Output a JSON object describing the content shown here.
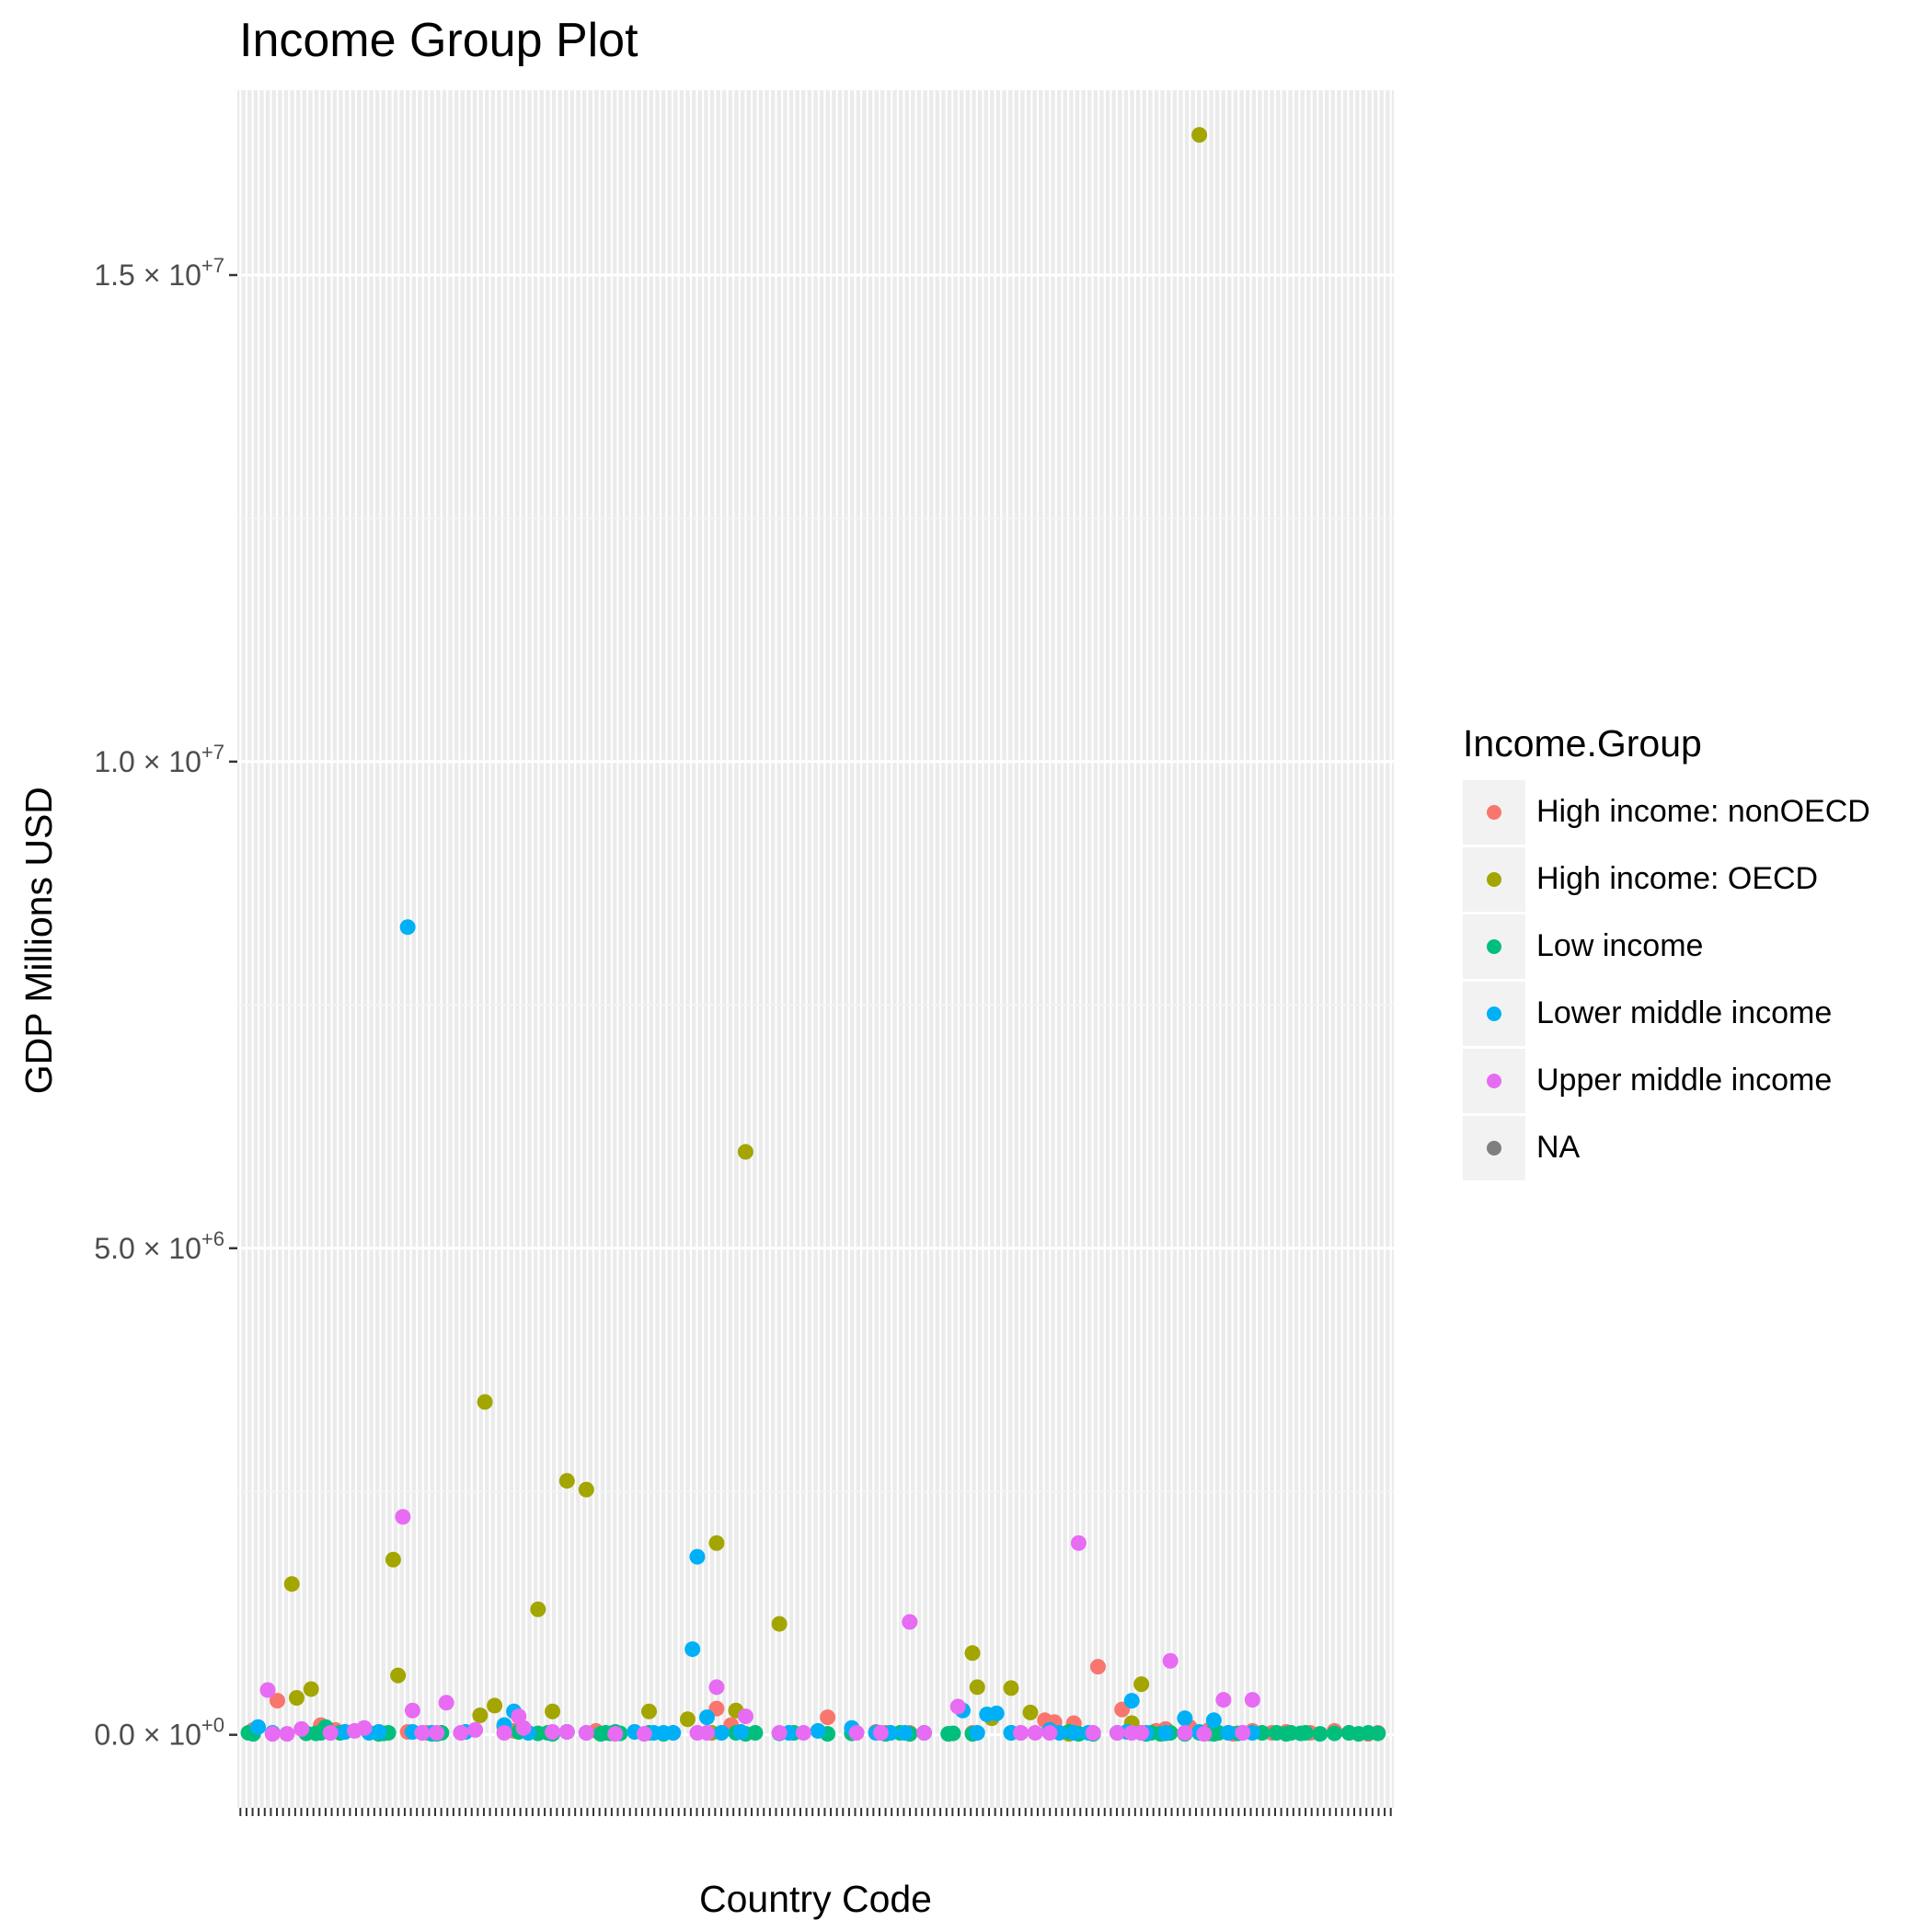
{
  "chart_data": {
    "type": "scatter",
    "title": "Income Group Plot",
    "xlabel": "Country Code",
    "ylabel": "GDP Millions USD",
    "ylim": [
      -750000,
      16900000
    ],
    "y_ticks": [
      {
        "value": 0,
        "mantissa": "0.0",
        "exp": "+0"
      },
      {
        "value": 5000000,
        "mantissa": "5.0",
        "exp": "+6"
      },
      {
        "value": 10000000,
        "mantissa": "1.0",
        "exp": "+7"
      },
      {
        "value": 15000000,
        "mantissa": "1.5",
        "exp": "+7"
      }
    ],
    "grid": true,
    "legend_position": "right",
    "legend_title": "Income.Group",
    "x_tick_count": 190,
    "colors": {
      "panel": "#ebebeb",
      "grid_major": "#ffffff",
      "grid_minor": "#f5f5f5"
    },
    "series": [
      {
        "name": "High income: nonOECD",
        "color": "#F8766D",
        "points": [
          [
            1,
            50000
          ],
          [
            6,
            350000
          ],
          [
            15,
            100000
          ],
          [
            18,
            50000
          ],
          [
            20,
            30000
          ],
          [
            33,
            30000
          ],
          [
            37,
            20000
          ],
          [
            53,
            80000
          ],
          [
            55,
            40000
          ],
          [
            72,
            40000
          ],
          [
            88,
            20000
          ],
          [
            97,
            270000
          ],
          [
            100,
            100000
          ],
          [
            120,
            180000
          ],
          [
            125,
            60000
          ],
          [
            130,
            30000
          ],
          [
            132,
            20000
          ],
          [
            137,
            20000
          ],
          [
            145,
            10000
          ],
          [
            150,
            20000
          ],
          [
            160,
            20000
          ],
          [
            165,
            150000
          ],
          [
            167,
            130000
          ],
          [
            171,
            120000
          ],
          [
            176,
            700000
          ],
          [
            181,
            260000
          ],
          [
            185,
            20000
          ],
          [
            188,
            40000
          ],
          [
            190,
            60000
          ],
          [
            195,
            80000
          ],
          [
            199,
            50000
          ],
          [
            203,
            20000
          ],
          [
            204,
            10000
          ],
          [
            208,
            40000
          ],
          [
            212,
            20000
          ],
          [
            215,
            30000
          ],
          [
            220,
            20000
          ],
          [
            225,
            40000
          ],
          [
            228,
            20000
          ],
          [
            232,
            10000
          ],
          [
            234,
            20000
          ]
        ]
      },
      {
        "name": "High income: OECD",
        "color": "#A3A500",
        "points": [
          [
            9,
            1550000
          ],
          [
            10,
            380000
          ],
          [
            13,
            470000
          ],
          [
            30,
            1800000
          ],
          [
            31,
            610000
          ],
          [
            48,
            200000
          ],
          [
            49,
            3420000
          ],
          [
            51,
            300000
          ],
          [
            60,
            1290000
          ],
          [
            63,
            240000
          ],
          [
            66,
            2610000
          ],
          [
            70,
            2520000
          ],
          [
            83,
            240000
          ],
          [
            91,
            160000
          ],
          [
            96,
            20000
          ],
          [
            97,
            1970000
          ],
          [
            101,
            250000
          ],
          [
            103,
            5990000
          ],
          [
            110,
            1140000
          ],
          [
            150,
            840000
          ],
          [
            151,
            490000
          ],
          [
            154,
            170000
          ],
          [
            158,
            480000
          ],
          [
            162,
            230000
          ],
          [
            170,
            10000
          ],
          [
            183,
            120000
          ],
          [
            185,
            520000
          ],
          [
            197,
            16440000
          ]
        ]
      },
      {
        "name": "Low income",
        "color": "#00BF7D",
        "points": [
          [
            0,
            20000
          ],
          [
            1,
            10000
          ],
          [
            12,
            15000
          ],
          [
            14,
            15000
          ],
          [
            15,
            20000
          ],
          [
            16,
            80000
          ],
          [
            19,
            20000
          ],
          [
            27,
            10000
          ],
          [
            28,
            15000
          ],
          [
            29,
            20000
          ],
          [
            38,
            10000
          ],
          [
            39,
            10000
          ],
          [
            40,
            20000
          ],
          [
            56,
            30000
          ],
          [
            60,
            15000
          ],
          [
            62,
            20000
          ],
          [
            63,
            10000
          ],
          [
            73,
            10000
          ],
          [
            74,
            20000
          ],
          [
            75,
            15000
          ],
          [
            76,
            30000
          ],
          [
            77,
            15000
          ],
          [
            83,
            20000
          ],
          [
            86,
            10000
          ],
          [
            101,
            20000
          ],
          [
            103,
            10000
          ],
          [
            105,
            20000
          ],
          [
            110,
            15000
          ],
          [
            113,
            20000
          ],
          [
            120,
            10000
          ],
          [
            125,
            15000
          ],
          [
            132,
            10000
          ],
          [
            133,
            20000
          ],
          [
            135,
            20000
          ],
          [
            137,
            10000
          ],
          [
            140,
            20000
          ],
          [
            145,
            10000
          ],
          [
            146,
            15000
          ],
          [
            150,
            10000
          ],
          [
            158,
            20000
          ],
          [
            170,
            30000
          ],
          [
            172,
            10000
          ],
          [
            175,
            10000
          ],
          [
            180,
            20000
          ],
          [
            185,
            20000
          ],
          [
            186,
            10000
          ],
          [
            187,
            20000
          ],
          [
            189,
            10000
          ],
          [
            190,
            15000
          ],
          [
            191,
            20000
          ],
          [
            194,
            10000
          ],
          [
            197,
            20000
          ],
          [
            199,
            15000
          ],
          [
            200,
            10000
          ],
          [
            201,
            20000
          ],
          [
            205,
            15000
          ],
          [
            210,
            20000
          ],
          [
            213,
            20000
          ],
          [
            215,
            10000
          ],
          [
            216,
            20000
          ],
          [
            218,
            15000
          ],
          [
            219,
            20000
          ],
          [
            222,
            10000
          ],
          [
            225,
            15000
          ],
          [
            228,
            20000
          ],
          [
            230,
            10000
          ],
          [
            232,
            20000
          ],
          [
            234,
            15000
          ]
        ]
      },
      {
        "name": "Lower middle income",
        "color": "#00B0F6",
        "points": [
          [
            2,
            80000
          ],
          [
            5,
            20000
          ],
          [
            17,
            20000
          ],
          [
            20,
            30000
          ],
          [
            25,
            20000
          ],
          [
            27,
            30000
          ],
          [
            33,
            8300000
          ],
          [
            34,
            30000
          ],
          [
            36,
            20000
          ],
          [
            38,
            20000
          ],
          [
            45,
            30000
          ],
          [
            53,
            100000
          ],
          [
            55,
            240000
          ],
          [
            58,
            20000
          ],
          [
            66,
            30000
          ],
          [
            70,
            20000
          ],
          [
            80,
            30000
          ],
          [
            84,
            20000
          ],
          [
            86,
            20000
          ],
          [
            88,
            20000
          ],
          [
            92,
            880000
          ],
          [
            93,
            1830000
          ],
          [
            95,
            180000
          ],
          [
            98,
            20000
          ],
          [
            102,
            30000
          ],
          [
            112,
            20000
          ],
          [
            118,
            40000
          ],
          [
            125,
            70000
          ],
          [
            130,
            20000
          ],
          [
            131,
            20000
          ],
          [
            133,
            20000
          ],
          [
            136,
            20000
          ],
          [
            148,
            250000
          ],
          [
            151,
            20000
          ],
          [
            153,
            210000
          ],
          [
            155,
            220000
          ],
          [
            158,
            20000
          ],
          [
            166,
            50000
          ],
          [
            168,
            20000
          ],
          [
            171,
            20000
          ],
          [
            174,
            20000
          ],
          [
            182,
            30000
          ],
          [
            183,
            350000
          ],
          [
            186,
            20000
          ],
          [
            190,
            20000
          ],
          [
            194,
            170000
          ],
          [
            197,
            30000
          ],
          [
            200,
            150000
          ],
          [
            203,
            20000
          ],
          [
            206,
            20000
          ],
          [
            208,
            20000
          ]
        ]
      },
      {
        "name": "Upper middle income",
        "color": "#E76BF3",
        "points": [
          [
            4,
            460000
          ],
          [
            5,
            10000
          ],
          [
            8,
            10000
          ],
          [
            11,
            60000
          ],
          [
            17,
            20000
          ],
          [
            22,
            40000
          ],
          [
            24,
            70000
          ],
          [
            32,
            2240000
          ],
          [
            34,
            250000
          ],
          [
            36,
            20000
          ],
          [
            39,
            20000
          ],
          [
            41,
            330000
          ],
          [
            44,
            20000
          ],
          [
            47,
            50000
          ],
          [
            53,
            20000
          ],
          [
            56,
            190000
          ],
          [
            57,
            70000
          ],
          [
            63,
            30000
          ],
          [
            66,
            30000
          ],
          [
            70,
            20000
          ],
          [
            76,
            10000
          ],
          [
            82,
            10000
          ],
          [
            93,
            20000
          ],
          [
            95,
            20000
          ],
          [
            97,
            490000
          ],
          [
            103,
            190000
          ],
          [
            110,
            20000
          ],
          [
            115,
            20000
          ],
          [
            126,
            20000
          ],
          [
            131,
            20000
          ],
          [
            137,
            1160000
          ],
          [
            140,
            20000
          ],
          [
            147,
            290000
          ],
          [
            160,
            20000
          ],
          [
            163,
            20000
          ],
          [
            166,
            20000
          ],
          [
            172,
            1970000
          ],
          [
            175,
            20000
          ],
          [
            180,
            20000
          ],
          [
            183,
            20000
          ],
          [
            185,
            20000
          ],
          [
            191,
            760000
          ],
          [
            194,
            20000
          ],
          [
            198,
            10000
          ],
          [
            202,
            360000
          ],
          [
            206,
            20000
          ],
          [
            208,
            360000
          ]
        ]
      }
    ]
  }
}
